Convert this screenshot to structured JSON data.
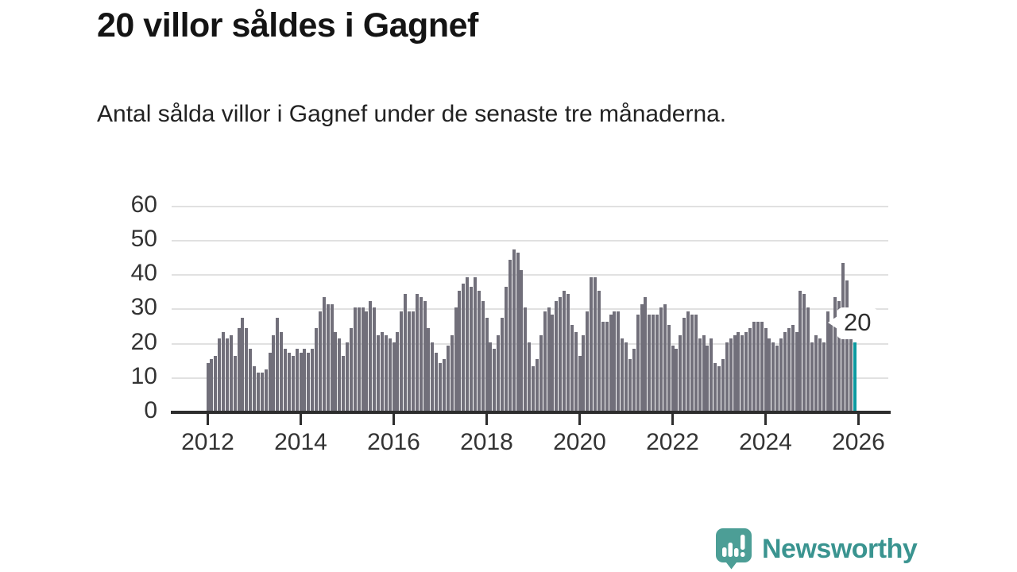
{
  "header": {
    "title": "20 villor såldes i Gagnef",
    "subtitle": "Antal sålda villor i Gagnef under de senaste tre månaderna."
  },
  "chart_data": {
    "type": "bar",
    "title": "20 villor såldes i Gagnef",
    "description": "Antal sålda villor i Gagnef under de senaste tre månaderna.",
    "x_start": "2012-01",
    "x_end": "2025-12",
    "frequency": "monthly",
    "ylabel": "",
    "xlabel": "",
    "ylim": [
      0,
      60
    ],
    "grid": true,
    "y_ticks": [
      0,
      10,
      20,
      30,
      40,
      50,
      60
    ],
    "x_tick_years": [
      "2012",
      "2014",
      "2016",
      "2018",
      "2020",
      "2022",
      "2024",
      "2026"
    ],
    "values": [
      14,
      15,
      16,
      21,
      23,
      21,
      22,
      16,
      24,
      27,
      24,
      18,
      13,
      11,
      11,
      12,
      17,
      22,
      27,
      23,
      18,
      17,
      16,
      18,
      17,
      18,
      17,
      18,
      24,
      29,
      33,
      31,
      31,
      23,
      21,
      16,
      20,
      24,
      30,
      30,
      30,
      29,
      32,
      30,
      22,
      23,
      22,
      21,
      20,
      23,
      29,
      34,
      29,
      29,
      34,
      33,
      32,
      24,
      20,
      17,
      14,
      15,
      19,
      22,
      30,
      35,
      37,
      39,
      36,
      39,
      35,
      32,
      27,
      20,
      18,
      22,
      27,
      36,
      44,
      47,
      46,
      41,
      30,
      20,
      13,
      15,
      22,
      29,
      30,
      28,
      32,
      33,
      35,
      34,
      25,
      23,
      16,
      22,
      29,
      39,
      39,
      35,
      26,
      26,
      28,
      29,
      29,
      21,
      20,
      15,
      18,
      28,
      31,
      33,
      28,
      28,
      28,
      30,
      31,
      25,
      19,
      18,
      22,
      27,
      29,
      28,
      28,
      21,
      22,
      19,
      21,
      14,
      13,
      15,
      20,
      21,
      22,
      23,
      22,
      23,
      24,
      26,
      26,
      26,
      24,
      21,
      20,
      19,
      21,
      23,
      24,
      25,
      23,
      35,
      34,
      30,
      20,
      22,
      21,
      20,
      29,
      26,
      33,
      32,
      43,
      38,
      25,
      20
    ],
    "highlight": {
      "index": 167,
      "value": 20,
      "label": "20"
    },
    "colors": {
      "bar": "#716f7a",
      "highlight": "#0c9aa0",
      "grid": "#e1e1e1",
      "axis": "#2d2d2d",
      "tick_text": "#333333"
    }
  },
  "annotation": {
    "latest_value_label": "20"
  },
  "footer": {
    "brand": "Newsworthy",
    "brand_color": "#3a9490",
    "logo_color": "#4c9e96"
  }
}
